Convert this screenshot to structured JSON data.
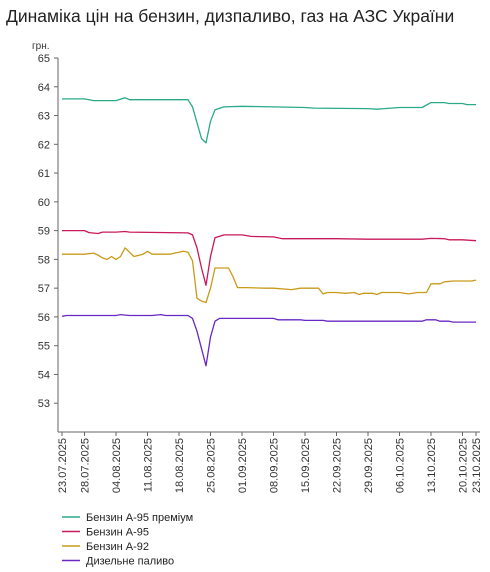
{
  "chart_data": {
    "type": "line",
    "title": "Динаміка цін на бензин, дизпаливо, газ на АЗС України",
    "ylabel": "грн.",
    "xlabel": "",
    "ylim": [
      52,
      65
    ],
    "yticks": [
      53,
      54,
      55,
      56,
      57,
      58,
      59,
      60,
      61,
      62,
      63,
      64,
      65
    ],
    "x_start": "2025-07-23",
    "x_end": "2025-10-23",
    "x_ticks": [
      "2025-07-23",
      "2025-07-28",
      "2025-08-04",
      "2025-08-11",
      "2025-08-18",
      "2025-08-25",
      "2025-09-01",
      "2025-09-08",
      "2025-09-15",
      "2025-09-22",
      "2025-09-29",
      "2025-10-06",
      "2025-10-13",
      "2025-10-20",
      "2025-10-23"
    ],
    "x_tick_labels": [
      "23.07.2025",
      "28.07.2025",
      "04.08.2025",
      "11.08.2025",
      "18.08.2025",
      "25.08.2025",
      "01.09.2025",
      "08.09.2025",
      "15.09.2025",
      "22.09.2025",
      "29.09.2025",
      "06.10.2025",
      "13.10.2025",
      "20.10.2025",
      "23.10.2025"
    ],
    "grid": false,
    "legend_position": "bottom-left",
    "series": [
      {
        "name": "Бензин А-95 преміум",
        "color": "#2aaa8a",
        "points": [
          [
            "2025-07-23",
            63.58
          ],
          [
            "2025-07-28",
            63.58
          ],
          [
            "2025-07-30",
            63.52
          ],
          [
            "2025-08-04",
            63.52
          ],
          [
            "2025-08-06",
            63.62
          ],
          [
            "2025-08-07",
            63.55
          ],
          [
            "2025-08-12",
            63.55
          ],
          [
            "2025-08-20",
            63.55
          ],
          [
            "2025-08-21",
            63.3
          ],
          [
            "2025-08-22",
            62.75
          ],
          [
            "2025-08-23",
            62.2
          ],
          [
            "2025-08-24",
            62.05
          ],
          [
            "2025-08-25",
            62.8
          ],
          [
            "2025-08-26",
            63.2
          ],
          [
            "2025-08-28",
            63.3
          ],
          [
            "2025-09-01",
            63.32
          ],
          [
            "2025-09-08",
            63.3
          ],
          [
            "2025-09-15",
            63.28
          ],
          [
            "2025-09-17",
            63.26
          ],
          [
            "2025-09-29",
            63.24
          ],
          [
            "2025-10-01",
            63.22
          ],
          [
            "2025-10-06",
            63.28
          ],
          [
            "2025-10-11",
            63.28
          ],
          [
            "2025-10-13",
            63.45
          ],
          [
            "2025-10-16",
            63.45
          ],
          [
            "2025-10-17",
            63.42
          ],
          [
            "2025-10-20",
            63.42
          ],
          [
            "2025-10-21",
            63.38
          ],
          [
            "2025-10-23",
            63.38
          ]
        ]
      },
      {
        "name": "Бензин А-95",
        "color": "#c8195a",
        "points": [
          [
            "2025-07-23",
            59.0
          ],
          [
            "2025-07-28",
            59.0
          ],
          [
            "2025-07-29",
            58.93
          ],
          [
            "2025-07-31",
            58.9
          ],
          [
            "2025-08-01",
            58.95
          ],
          [
            "2025-08-04",
            58.95
          ],
          [
            "2025-08-06",
            58.97
          ],
          [
            "2025-08-07",
            58.95
          ],
          [
            "2025-08-20",
            58.92
          ],
          [
            "2025-08-21",
            58.85
          ],
          [
            "2025-08-22",
            58.4
          ],
          [
            "2025-08-23",
            57.7
          ],
          [
            "2025-08-24",
            57.1
          ],
          [
            "2025-08-25",
            58.1
          ],
          [
            "2025-08-26",
            58.75
          ],
          [
            "2025-08-28",
            58.85
          ],
          [
            "2025-09-01",
            58.85
          ],
          [
            "2025-09-03",
            58.8
          ],
          [
            "2025-09-08",
            58.78
          ],
          [
            "2025-09-10",
            58.72
          ],
          [
            "2025-09-22",
            58.72
          ],
          [
            "2025-09-29",
            58.7
          ],
          [
            "2025-10-06",
            58.7
          ],
          [
            "2025-10-11",
            58.7
          ],
          [
            "2025-10-13",
            58.73
          ],
          [
            "2025-10-16",
            58.72
          ],
          [
            "2025-10-17",
            58.68
          ],
          [
            "2025-10-20",
            58.68
          ],
          [
            "2025-10-23",
            58.65
          ]
        ]
      },
      {
        "name": "Бензин А-92",
        "color": "#c99a1a",
        "points": [
          [
            "2025-07-23",
            58.18
          ],
          [
            "2025-07-28",
            58.18
          ],
          [
            "2025-07-30",
            58.22
          ],
          [
            "2025-07-31",
            58.15
          ],
          [
            "2025-08-01",
            58.05
          ],
          [
            "2025-08-02",
            58.0
          ],
          [
            "2025-08-03",
            58.1
          ],
          [
            "2025-08-04",
            58.0
          ],
          [
            "2025-08-05",
            58.1
          ],
          [
            "2025-08-06",
            58.4
          ],
          [
            "2025-08-07",
            58.25
          ],
          [
            "2025-08-08",
            58.1
          ],
          [
            "2025-08-10",
            58.18
          ],
          [
            "2025-08-11",
            58.28
          ],
          [
            "2025-08-12",
            58.18
          ],
          [
            "2025-08-16",
            58.18
          ],
          [
            "2025-08-17",
            58.22
          ],
          [
            "2025-08-18",
            58.25
          ],
          [
            "2025-08-19",
            58.28
          ],
          [
            "2025-08-20",
            58.25
          ],
          [
            "2025-08-21",
            57.95
          ],
          [
            "2025-08-22",
            56.65
          ],
          [
            "2025-08-23",
            56.55
          ],
          [
            "2025-08-24",
            56.5
          ],
          [
            "2025-08-25",
            57.0
          ],
          [
            "2025-08-26",
            57.7
          ],
          [
            "2025-08-27",
            57.7
          ],
          [
            "2025-08-29",
            57.7
          ],
          [
            "2025-08-30",
            57.4
          ],
          [
            "2025-08-31",
            57.02
          ],
          [
            "2025-09-02",
            57.02
          ],
          [
            "2025-09-06",
            57.0
          ],
          [
            "2025-09-08",
            57.0
          ],
          [
            "2025-09-12",
            56.95
          ],
          [
            "2025-09-14",
            57.0
          ],
          [
            "2025-09-18",
            57.0
          ],
          [
            "2025-09-19",
            56.8
          ],
          [
            "2025-09-20",
            56.85
          ],
          [
            "2025-09-22",
            56.85
          ],
          [
            "2025-09-24",
            56.82
          ],
          [
            "2025-09-26",
            56.85
          ],
          [
            "2025-09-27",
            56.78
          ],
          [
            "2025-09-28",
            56.82
          ],
          [
            "2025-09-30",
            56.82
          ],
          [
            "2025-10-01",
            56.78
          ],
          [
            "2025-10-02",
            56.85
          ],
          [
            "2025-10-06",
            56.85
          ],
          [
            "2025-10-08",
            56.8
          ],
          [
            "2025-10-10",
            56.85
          ],
          [
            "2025-10-12",
            56.85
          ],
          [
            "2025-10-13",
            57.15
          ],
          [
            "2025-10-15",
            57.15
          ],
          [
            "2025-10-16",
            57.22
          ],
          [
            "2025-10-18",
            57.25
          ],
          [
            "2025-10-22",
            57.25
          ],
          [
            "2025-10-23",
            57.28
          ]
        ]
      },
      {
        "name": "Дизельне паливо",
        "color": "#6a28c2",
        "points": [
          [
            "2025-07-23",
            56.02
          ],
          [
            "2025-07-24",
            56.05
          ],
          [
            "2025-07-28",
            56.05
          ],
          [
            "2025-08-04",
            56.05
          ],
          [
            "2025-08-05",
            56.08
          ],
          [
            "2025-08-07",
            56.05
          ],
          [
            "2025-08-12",
            56.05
          ],
          [
            "2025-08-14",
            56.08
          ],
          [
            "2025-08-15",
            56.05
          ],
          [
            "2025-08-20",
            56.05
          ],
          [
            "2025-08-21",
            55.95
          ],
          [
            "2025-08-22",
            55.5
          ],
          [
            "2025-08-23",
            54.9
          ],
          [
            "2025-08-24",
            54.3
          ],
          [
            "2025-08-25",
            55.3
          ],
          [
            "2025-08-26",
            55.85
          ],
          [
            "2025-08-27",
            55.95
          ],
          [
            "2025-09-01",
            55.95
          ],
          [
            "2025-09-08",
            55.95
          ],
          [
            "2025-09-09",
            55.9
          ],
          [
            "2025-09-14",
            55.9
          ],
          [
            "2025-09-15",
            55.88
          ],
          [
            "2025-09-19",
            55.88
          ],
          [
            "2025-09-20",
            55.85
          ],
          [
            "2025-10-06",
            55.85
          ],
          [
            "2025-10-11",
            55.85
          ],
          [
            "2025-10-12",
            55.9
          ],
          [
            "2025-10-14",
            55.9
          ],
          [
            "2025-10-15",
            55.85
          ],
          [
            "2025-10-17",
            55.85
          ],
          [
            "2025-10-18",
            55.82
          ],
          [
            "2025-10-23",
            55.82
          ]
        ]
      }
    ]
  }
}
